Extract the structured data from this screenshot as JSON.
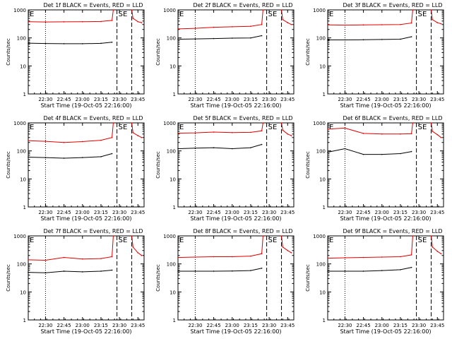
{
  "figure": {
    "colors": {
      "events": "#000000",
      "lld": "#e00000",
      "axis": "#000000"
    },
    "y_ticks": [
      "1",
      "10",
      "100",
      "1000"
    ],
    "x_ticks": [
      "22:30",
      "22:45",
      "23:00",
      "23:15",
      "23:30",
      "23:45"
    ],
    "corner_labels": [
      "E",
      "SE"
    ]
  },
  "chart_data": [
    {
      "type": "line",
      "title": "Det 1f BLACK = Events, RED = LLD",
      "xlabel": "Start Time (19-Oct-05 22:16:00)",
      "ylabel": "Counts/sec",
      "y_scale": "log",
      "ylim": [
        1,
        1000
      ],
      "x": [
        "22:16",
        "22:30",
        "22:45",
        "23:00",
        "23:15",
        "23:24",
        "23:25",
        "23:27",
        "23:28",
        "23:32",
        "23:38",
        "23:40",
        "23:41",
        "23:45",
        "23:48"
      ],
      "series": [
        {
          "name": "BLACK = Events",
          "values": [
            65,
            63,
            62,
            62,
            64,
            70,
            null,
            null,
            null,
            null,
            null,
            null,
            null,
            null,
            null
          ]
        },
        {
          "name": "RED = LLD",
          "values": [
            380,
            370,
            375,
            378,
            385,
            420,
            1000,
            null,
            null,
            null,
            null,
            1000,
            500,
            380,
            350
          ]
        }
      ],
      "dotted_line": "22:30",
      "dashed_lines": [
        "23:28",
        "23:40"
      ]
    },
    {
      "type": "line",
      "title": "Det 2f BLACK = Events, RED = LLD",
      "xlabel": "Start Time (19-Oct-05 22:16:00)",
      "ylabel": "Counts/sec",
      "y_scale": "log",
      "ylim": [
        1,
        1000
      ],
      "x": [
        "22:16",
        "22:30",
        "22:45",
        "23:00",
        "23:15",
        "23:24",
        "23:25",
        "23:27",
        "23:28",
        "23:32",
        "23:38",
        "23:40",
        "23:41",
        "23:45",
        "23:48"
      ],
      "series": [
        {
          "name": "BLACK = Events",
          "values": [
            90,
            92,
            95,
            98,
            100,
            120,
            null,
            null,
            null,
            null,
            null,
            null,
            null,
            null,
            null
          ]
        },
        {
          "name": "RED = LLD",
          "values": [
            210,
            220,
            240,
            250,
            260,
            300,
            1000,
            null,
            null,
            null,
            null,
            1000,
            450,
            350,
            300
          ]
        }
      ],
      "dotted_line": "22:30",
      "dashed_lines": [
        "23:28",
        "23:40"
      ]
    },
    {
      "type": "line",
      "title": "Det 3f BLACK = Events, RED = LLD",
      "xlabel": "Start Time (19-Oct-05 22:16:00)",
      "ylabel": "Counts/sec",
      "y_scale": "log",
      "ylim": [
        1,
        1000
      ],
      "x": [
        "22:16",
        "22:30",
        "22:45",
        "23:00",
        "23:15",
        "23:24",
        "23:25",
        "23:27",
        "23:28",
        "23:32",
        "23:38",
        "23:40",
        "23:41",
        "23:45",
        "23:48"
      ],
      "series": [
        {
          "name": "BLACK = Events",
          "values": [
            85,
            85,
            86,
            88,
            90,
            110,
            null,
            null,
            null,
            null,
            null,
            null,
            null,
            null,
            null
          ]
        },
        {
          "name": "RED = LLD",
          "values": [
            290,
            285,
            290,
            295,
            300,
            340,
            1000,
            null,
            null,
            null,
            null,
            1000,
            450,
            350,
            320
          ]
        }
      ],
      "dotted_line": "22:30",
      "dashed_lines": [
        "23:28",
        "23:40"
      ]
    },
    {
      "type": "line",
      "title": "Det 4f BLACK = Events, RED = LLD",
      "xlabel": "Start Time (19-Oct-05 22:16:00)",
      "ylabel": "Counts/sec",
      "y_scale": "log",
      "ylim": [
        1,
        1000
      ],
      "x": [
        "22:16",
        "22:30",
        "22:45",
        "23:00",
        "23:15",
        "23:24",
        "23:25",
        "23:27",
        "23:28",
        "23:32",
        "23:38",
        "23:40",
        "23:41",
        "23:45",
        "23:48"
      ],
      "series": [
        {
          "name": "BLACK = Events",
          "values": [
            60,
            58,
            55,
            58,
            62,
            80,
            null,
            null,
            null,
            null,
            null,
            null,
            null,
            null,
            null
          ]
        },
        {
          "name": "RED = LLD",
          "values": [
            230,
            220,
            200,
            215,
            240,
            300,
            1000,
            null,
            null,
            null,
            null,
            1000,
            450,
            350,
            300
          ]
        }
      ],
      "dotted_line": "22:30",
      "dashed_lines": [
        "23:28",
        "23:40"
      ]
    },
    {
      "type": "line",
      "title": "Det 5f BLACK = Events, RED = LLD",
      "xlabel": "Start Time (19-Oct-05 22:16:00)",
      "ylabel": "Counts/sec",
      "y_scale": "log",
      "ylim": [
        1,
        1000
      ],
      "x": [
        "22:16",
        "22:30",
        "22:45",
        "23:00",
        "23:15",
        "23:24",
        "23:25",
        "23:27",
        "23:28",
        "23:32",
        "23:38",
        "23:40",
        "23:41",
        "23:45",
        "23:48"
      ],
      "series": [
        {
          "name": "BLACK = Events",
          "values": [
            120,
            125,
            130,
            120,
            130,
            170,
            null,
            null,
            null,
            null,
            null,
            null,
            null,
            null,
            null
          ]
        },
        {
          "name": "RED = LLD",
          "values": [
            430,
            440,
            470,
            450,
            460,
            520,
            1000,
            null,
            null,
            null,
            null,
            1000,
            550,
            400,
            350
          ]
        }
      ],
      "dotted_line": "22:30",
      "dashed_lines": [
        "23:28",
        "23:40"
      ]
    },
    {
      "type": "line",
      "title": "Det 6f BLACK = Events, RED = LLD",
      "xlabel": "Start Time (19-Oct-05 22:16:00)",
      "ylabel": "Counts/sec",
      "y_scale": "log",
      "ylim": [
        1,
        1000
      ],
      "x": [
        "22:16",
        "22:30",
        "22:45",
        "23:00",
        "23:15",
        "23:24",
        "23:25",
        "23:27",
        "23:28",
        "23:32",
        "23:38",
        "23:40",
        "23:41",
        "23:45",
        "23:48"
      ],
      "series": [
        {
          "name": "BLACK = Events",
          "values": [
            90,
            120,
            75,
            75,
            80,
            95,
            null,
            null,
            null,
            null,
            null,
            null,
            null,
            null,
            null
          ]
        },
        {
          "name": "RED = LLD",
          "values": [
            600,
            650,
            420,
            400,
            400,
            410,
            1000,
            null,
            null,
            null,
            null,
            1000,
            500,
            380,
            300
          ]
        }
      ],
      "dotted_line": "22:30",
      "dashed_lines": [
        "23:28",
        "23:40"
      ]
    },
    {
      "type": "line",
      "title": "Det 7f BLACK = Events, RED = LLD",
      "xlabel": "Start Time (19-Oct-05 22:16:00)",
      "ylabel": "Counts/sec",
      "y_scale": "log",
      "ylim": [
        1,
        1000
      ],
      "x": [
        "22:16",
        "22:30",
        "22:45",
        "23:00",
        "23:15",
        "23:24",
        "23:25",
        "23:27",
        "23:28",
        "23:32",
        "23:38",
        "23:40",
        "23:41",
        "23:45",
        "23:48"
      ],
      "series": [
        {
          "name": "BLACK = Events",
          "values": [
            50,
            48,
            55,
            52,
            55,
            60,
            null,
            null,
            null,
            null,
            null,
            null,
            null,
            null,
            null
          ]
        },
        {
          "name": "RED = LLD",
          "values": [
            140,
            135,
            170,
            150,
            155,
            180,
            1000,
            null,
            null,
            null,
            null,
            1000,
            400,
            250,
            200
          ]
        }
      ],
      "dotted_line": "22:30",
      "dashed_lines": [
        "23:28",
        "23:40"
      ]
    },
    {
      "type": "line",
      "title": "Det 8f BLACK = Events, RED = LLD",
      "xlabel": "Start Time (19-Oct-05 22:16:00)",
      "ylabel": "Counts/sec",
      "y_scale": "log",
      "ylim": [
        1,
        1000
      ],
      "x": [
        "22:16",
        "22:30",
        "22:45",
        "23:00",
        "23:15",
        "23:24",
        "23:25",
        "23:27",
        "23:28",
        "23:32",
        "23:38",
        "23:40",
        "23:41",
        "23:45",
        "23:48"
      ],
      "series": [
        {
          "name": "BLACK = Events",
          "values": [
            55,
            55,
            55,
            56,
            58,
            70,
            null,
            null,
            null,
            null,
            null,
            null,
            null,
            null,
            null
          ]
        },
        {
          "name": "RED = LLD",
          "values": [
            170,
            175,
            180,
            180,
            190,
            230,
            1000,
            null,
            null,
            null,
            null,
            1000,
            400,
            300,
            250
          ]
        }
      ],
      "dotted_line": "22:30",
      "dashed_lines": [
        "23:28",
        "23:40"
      ]
    },
    {
      "type": "line",
      "title": "Det 9f BLACK = Events, RED = LLD",
      "xlabel": "Start Time (19-Oct-05 22:16:00)",
      "ylabel": "Counts/sec",
      "y_scale": "log",
      "ylim": [
        1,
        1000
      ],
      "x": [
        "22:16",
        "22:30",
        "22:45",
        "23:00",
        "23:15",
        "23:24",
        "23:25",
        "23:27",
        "23:28",
        "23:32",
        "23:38",
        "23:40",
        "23:41",
        "23:45",
        "23:48"
      ],
      "series": [
        {
          "name": "BLACK = Events",
          "values": [
            55,
            55,
            55,
            58,
            62,
            75,
            null,
            null,
            null,
            null,
            null,
            null,
            null,
            null,
            null
          ]
        },
        {
          "name": "RED = LLD",
          "values": [
            160,
            165,
            170,
            175,
            180,
            210,
            1000,
            null,
            null,
            null,
            null,
            1000,
            400,
            280,
            230
          ]
        }
      ],
      "dotted_line": "22:30",
      "dashed_lines": [
        "23:28",
        "23:40"
      ]
    }
  ]
}
